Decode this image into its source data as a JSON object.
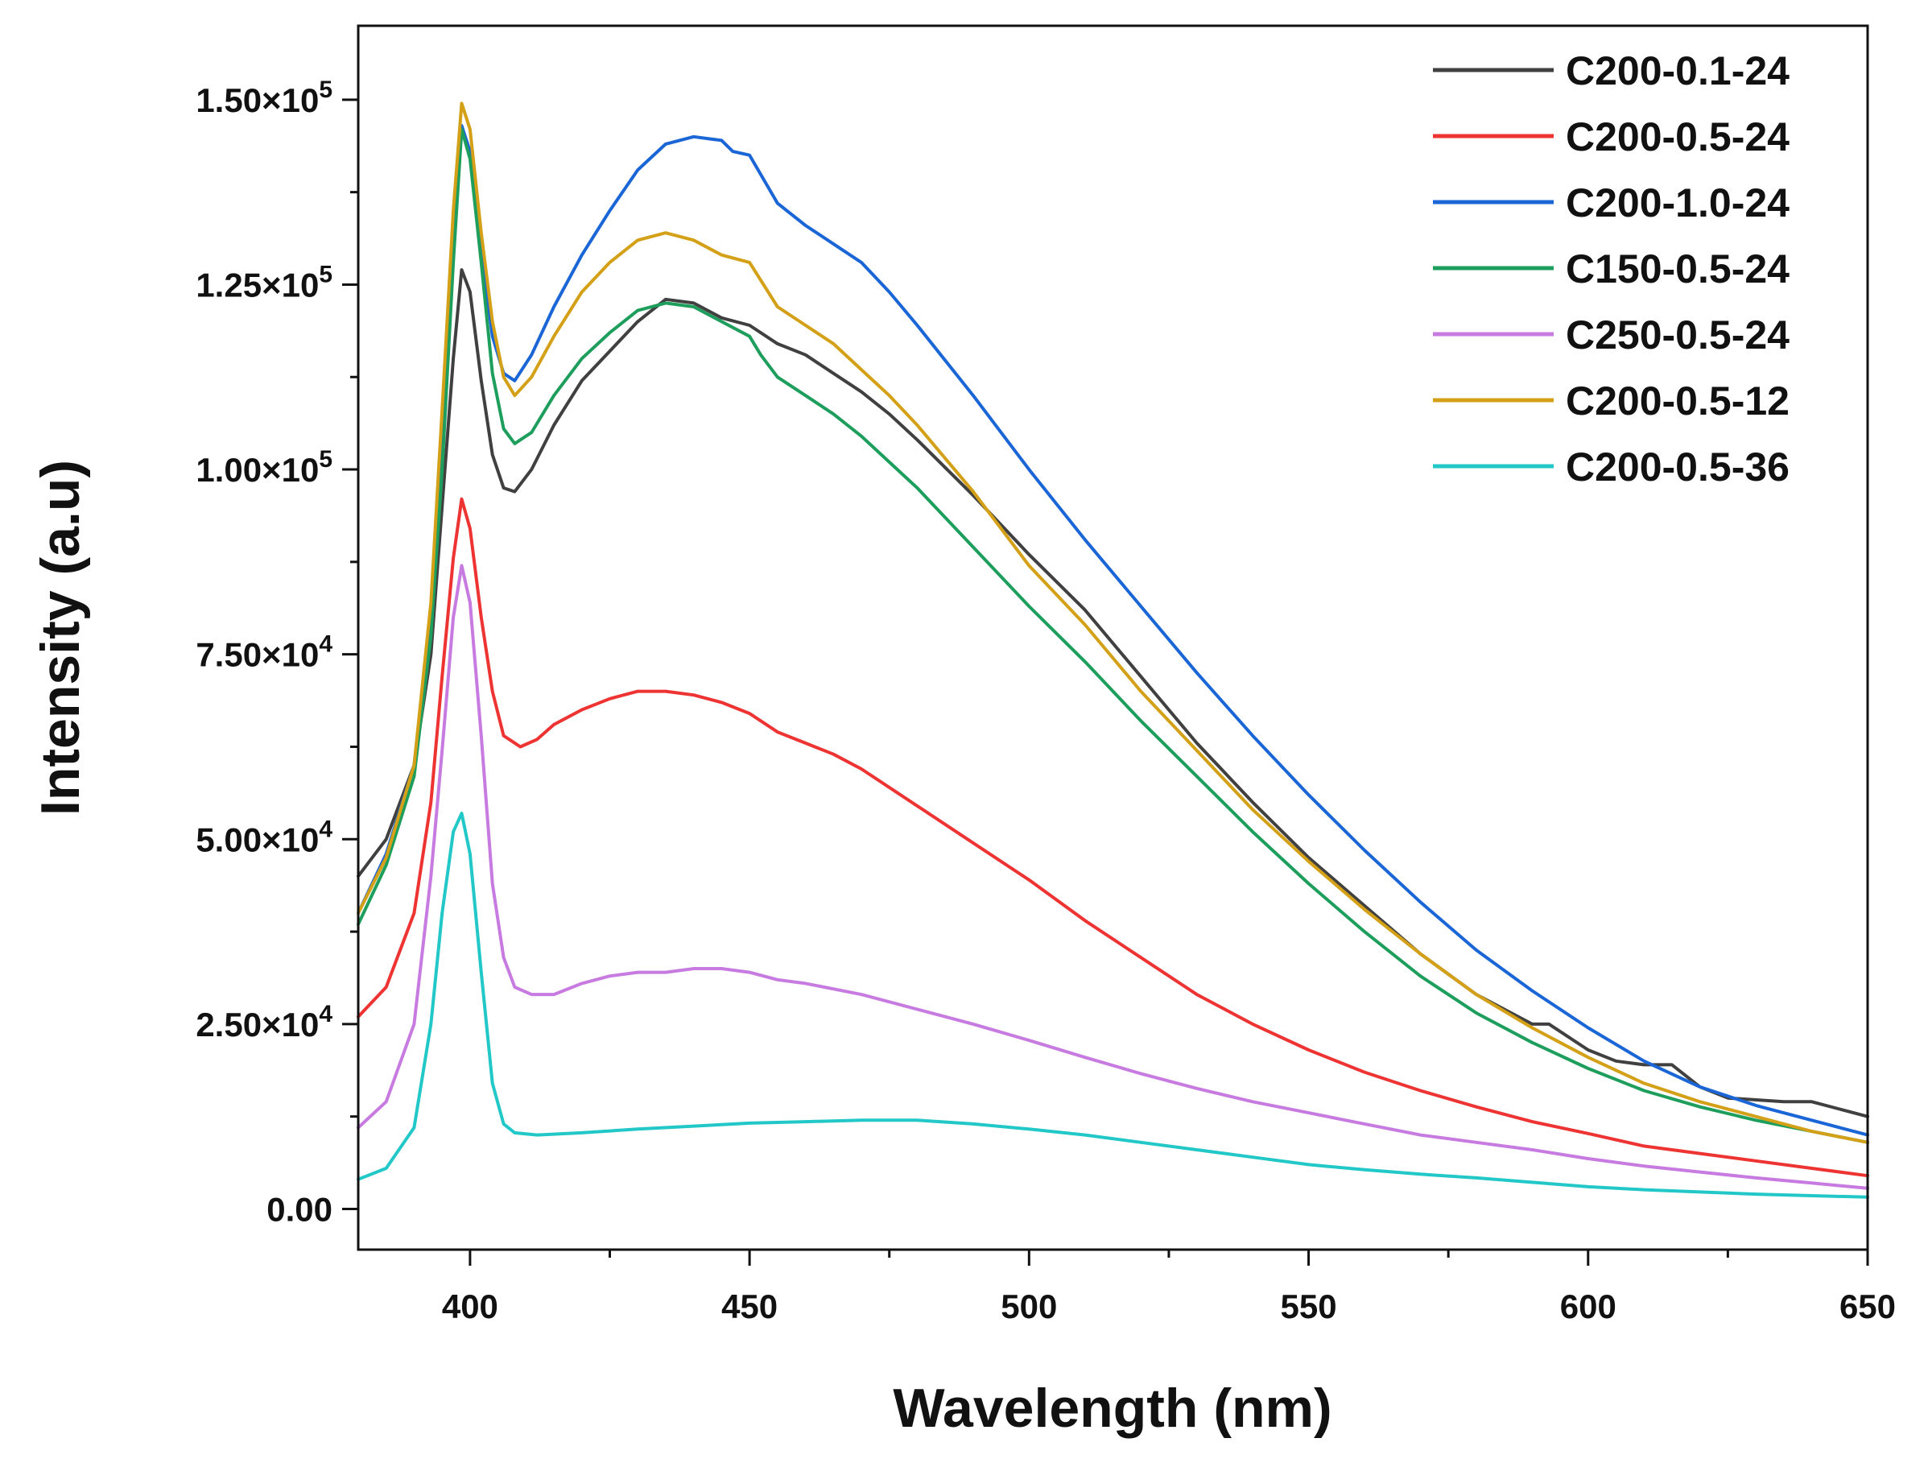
{
  "chart_data": {
    "type": "line",
    "title": "",
    "xlabel": "Wavelength (nm)",
    "ylabel": "Intensity (a.u)",
    "xlim": [
      380,
      650
    ],
    "ylim": [
      -5500,
      160000
    ],
    "x_ticks": [
      400,
      450,
      500,
      550,
      600,
      650
    ],
    "x_tick_labels": [
      "400",
      "450",
      "500",
      "550",
      "600",
      "650"
    ],
    "y_ticks": [
      0,
      25000,
      50000,
      75000,
      100000,
      125000,
      150000
    ],
    "y_tick_mantissas": [
      "0.00",
      "2.50×10",
      "5.00×10",
      "7.50×10",
      "1.00×10",
      "1.25×10",
      "1.50×10"
    ],
    "y_tick_exponents": [
      "",
      "4",
      "4",
      "4",
      "5",
      "5",
      "5"
    ],
    "legend_position": "top-right",
    "grid": false,
    "series": [
      {
        "name": "C200-0.1-24",
        "color": "#404040",
        "points": [
          [
            380,
            45000
          ],
          [
            385,
            50000
          ],
          [
            390,
            60000
          ],
          [
            393,
            75000
          ],
          [
            395,
            95000
          ],
          [
            397,
            115000
          ],
          [
            398.5,
            127000
          ],
          [
            400,
            124000
          ],
          [
            402,
            112000
          ],
          [
            404,
            102000
          ],
          [
            406,
            97500
          ],
          [
            408,
            97000
          ],
          [
            411,
            100000
          ],
          [
            415,
            106000
          ],
          [
            420,
            112000
          ],
          [
            425,
            116000
          ],
          [
            430,
            120000
          ],
          [
            435,
            123000
          ],
          [
            440,
            122500
          ],
          [
            445,
            120500
          ],
          [
            450,
            119500
          ],
          [
            455,
            117000
          ],
          [
            460,
            115500
          ],
          [
            465,
            113000
          ],
          [
            470,
            110500
          ],
          [
            475,
            107500
          ],
          [
            480,
            104000
          ],
          [
            490,
            96500
          ],
          [
            500,
            88500
          ],
          [
            510,
            81000
          ],
          [
            520,
            72000
          ],
          [
            530,
            63000
          ],
          [
            540,
            55000
          ],
          [
            550,
            47500
          ],
          [
            560,
            41000
          ],
          [
            570,
            34500
          ],
          [
            580,
            29000
          ],
          [
            590,
            25000
          ],
          [
            593,
            25000
          ],
          [
            600,
            21500
          ],
          [
            605,
            20000
          ],
          [
            610,
            19500
          ],
          [
            615,
            19500
          ],
          [
            620,
            16500
          ],
          [
            625,
            15000
          ],
          [
            635,
            14500
          ],
          [
            640,
            14500
          ],
          [
            645,
            13500
          ],
          [
            650,
            12500
          ]
        ]
      },
      {
        "name": "C200-0.5-24",
        "color": "#ee3333",
        "points": [
          [
            380,
            26000
          ],
          [
            385,
            30000
          ],
          [
            390,
            40000
          ],
          [
            393,
            55000
          ],
          [
            395,
            72000
          ],
          [
            397,
            88000
          ],
          [
            398.5,
            96000
          ],
          [
            400,
            92000
          ],
          [
            402,
            80000
          ],
          [
            404,
            70000
          ],
          [
            406,
            64000
          ],
          [
            409,
            62500
          ],
          [
            412,
            63500
          ],
          [
            415,
            65500
          ],
          [
            420,
            67500
          ],
          [
            425,
            69000
          ],
          [
            430,
            70000
          ],
          [
            435,
            70000
          ],
          [
            440,
            69500
          ],
          [
            445,
            68500
          ],
          [
            450,
            67000
          ],
          [
            455,
            64500
          ],
          [
            460,
            63000
          ],
          [
            465,
            61500
          ],
          [
            470,
            59500
          ],
          [
            480,
            54500
          ],
          [
            490,
            49500
          ],
          [
            500,
            44500
          ],
          [
            510,
            39000
          ],
          [
            520,
            34000
          ],
          [
            530,
            29000
          ],
          [
            540,
            25000
          ],
          [
            550,
            21500
          ],
          [
            560,
            18500
          ],
          [
            570,
            16000
          ],
          [
            580,
            13800
          ],
          [
            590,
            11800
          ],
          [
            600,
            10200
          ],
          [
            610,
            8500
          ],
          [
            620,
            7500
          ],
          [
            630,
            6500
          ],
          [
            640,
            5500
          ],
          [
            650,
            4500
          ]
        ]
      },
      {
        "name": "C200-1.0-24",
        "color": "#1a66d6",
        "points": [
          [
            380,
            40000
          ],
          [
            385,
            48000
          ],
          [
            390,
            60000
          ],
          [
            393,
            80000
          ],
          [
            395,
            105000
          ],
          [
            397,
            132000
          ],
          [
            398.5,
            146500
          ],
          [
            400,
            143000
          ],
          [
            402,
            130000
          ],
          [
            404,
            118000
          ],
          [
            406,
            113000
          ],
          [
            408,
            112000
          ],
          [
            411,
            115500
          ],
          [
            415,
            122000
          ],
          [
            420,
            129000
          ],
          [
            425,
            135000
          ],
          [
            430,
            140500
          ],
          [
            435,
            144000
          ],
          [
            440,
            145000
          ],
          [
            445,
            144500
          ],
          [
            447,
            143000
          ],
          [
            450,
            142500
          ],
          [
            455,
            136000
          ],
          [
            460,
            133000
          ],
          [
            465,
            130500
          ],
          [
            470,
            128000
          ],
          [
            475,
            124000
          ],
          [
            480,
            119500
          ],
          [
            490,
            110000
          ],
          [
            500,
            100000
          ],
          [
            510,
            90500
          ],
          [
            520,
            81500
          ],
          [
            530,
            72500
          ],
          [
            540,
            64000
          ],
          [
            550,
            56000
          ],
          [
            560,
            48500
          ],
          [
            570,
            41500
          ],
          [
            580,
            35000
          ],
          [
            590,
            29500
          ],
          [
            600,
            24500
          ],
          [
            610,
            20000
          ],
          [
            620,
            16500
          ],
          [
            630,
            14000
          ],
          [
            640,
            12000
          ],
          [
            650,
            10000
          ]
        ]
      },
      {
        "name": "C150-0.5-24",
        "color": "#1e9e5c",
        "points": [
          [
            380,
            38500
          ],
          [
            385,
            46500
          ],
          [
            390,
            58500
          ],
          [
            393,
            77500
          ],
          [
            395,
            100000
          ],
          [
            397,
            128000
          ],
          [
            398.5,
            146000
          ],
          [
            400,
            142000
          ],
          [
            402,
            128000
          ],
          [
            404,
            113000
          ],
          [
            406,
            105500
          ],
          [
            408,
            103500
          ],
          [
            411,
            105000
          ],
          [
            415,
            110000
          ],
          [
            420,
            115000
          ],
          [
            425,
            118500
          ],
          [
            430,
            121500
          ],
          [
            435,
            122500
          ],
          [
            440,
            122000
          ],
          [
            445,
            120000
          ],
          [
            450,
            118000
          ],
          [
            452,
            115500
          ],
          [
            455,
            112500
          ],
          [
            460,
            110000
          ],
          [
            465,
            107500
          ],
          [
            470,
            104500
          ],
          [
            475,
            101000
          ],
          [
            480,
            97500
          ],
          [
            490,
            89500
          ],
          [
            500,
            81500
          ],
          [
            510,
            74000
          ],
          [
            520,
            66000
          ],
          [
            530,
            58500
          ],
          [
            540,
            51000
          ],
          [
            550,
            44000
          ],
          [
            560,
            37500
          ],
          [
            570,
            31500
          ],
          [
            580,
            26500
          ],
          [
            590,
            22500
          ],
          [
            600,
            19000
          ],
          [
            610,
            16000
          ],
          [
            620,
            13800
          ],
          [
            630,
            12000
          ],
          [
            640,
            10500
          ],
          [
            650,
            9000
          ]
        ]
      },
      {
        "name": "C250-0.5-24",
        "color": "#c77ae0",
        "points": [
          [
            380,
            11000
          ],
          [
            385,
            14500
          ],
          [
            390,
            25000
          ],
          [
            393,
            45000
          ],
          [
            395,
            62000
          ],
          [
            397,
            80000
          ],
          [
            398.5,
            87000
          ],
          [
            400,
            82000
          ],
          [
            402,
            64000
          ],
          [
            404,
            44000
          ],
          [
            406,
            34000
          ],
          [
            408,
            30000
          ],
          [
            411,
            29000
          ],
          [
            415,
            29000
          ],
          [
            420,
            30500
          ],
          [
            425,
            31500
          ],
          [
            430,
            32000
          ],
          [
            435,
            32000
          ],
          [
            440,
            32500
          ],
          [
            445,
            32500
          ],
          [
            450,
            32000
          ],
          [
            455,
            31000
          ],
          [
            460,
            30500
          ],
          [
            470,
            29000
          ],
          [
            480,
            27000
          ],
          [
            490,
            25000
          ],
          [
            500,
            22800
          ],
          [
            510,
            20500
          ],
          [
            520,
            18300
          ],
          [
            530,
            16300
          ],
          [
            540,
            14500
          ],
          [
            550,
            13000
          ],
          [
            560,
            11500
          ],
          [
            570,
            10000
          ],
          [
            580,
            9000
          ],
          [
            590,
            8000
          ],
          [
            600,
            6800
          ],
          [
            610,
            5800
          ],
          [
            620,
            5000
          ],
          [
            630,
            4200
          ],
          [
            640,
            3500
          ],
          [
            650,
            2800
          ]
        ]
      },
      {
        "name": "C200-0.5-12",
        "color": "#d4a017",
        "points": [
          [
            380,
            40000
          ],
          [
            385,
            47500
          ],
          [
            390,
            60000
          ],
          [
            393,
            82000
          ],
          [
            395,
            108000
          ],
          [
            397,
            135000
          ],
          [
            398.5,
            149500
          ],
          [
            400,
            146000
          ],
          [
            402,
            132000
          ],
          [
            404,
            120000
          ],
          [
            406,
            112500
          ],
          [
            408,
            110000
          ],
          [
            411,
            112500
          ],
          [
            415,
            118000
          ],
          [
            420,
            124000
          ],
          [
            425,
            128000
          ],
          [
            430,
            131000
          ],
          [
            435,
            132000
          ],
          [
            440,
            131000
          ],
          [
            445,
            129000
          ],
          [
            450,
            128000
          ],
          [
            455,
            122000
          ],
          [
            460,
            119500
          ],
          [
            465,
            117000
          ],
          [
            470,
            113500
          ],
          [
            475,
            110000
          ],
          [
            480,
            106000
          ],
          [
            490,
            97000
          ],
          [
            500,
            87000
          ],
          [
            510,
            79000
          ],
          [
            520,
            70000
          ],
          [
            530,
            62000
          ],
          [
            540,
            54000
          ],
          [
            550,
            47000
          ],
          [
            560,
            40500
          ],
          [
            570,
            34500
          ],
          [
            580,
            29000
          ],
          [
            590,
            24500
          ],
          [
            600,
            20500
          ],
          [
            610,
            17000
          ],
          [
            620,
            14500
          ],
          [
            630,
            12500
          ],
          [
            640,
            10500
          ],
          [
            650,
            9000
          ]
        ]
      },
      {
        "name": "C200-0.5-36",
        "color": "#22c7c7",
        "points": [
          [
            380,
            4000
          ],
          [
            385,
            5500
          ],
          [
            390,
            11000
          ],
          [
            393,
            25000
          ],
          [
            395,
            40000
          ],
          [
            397,
            51000
          ],
          [
            398.5,
            53500
          ],
          [
            400,
            48000
          ],
          [
            402,
            32000
          ],
          [
            404,
            17000
          ],
          [
            406,
            11500
          ],
          [
            408,
            10300
          ],
          [
            412,
            10000
          ],
          [
            420,
            10300
          ],
          [
            430,
            10800
          ],
          [
            440,
            11200
          ],
          [
            450,
            11600
          ],
          [
            460,
            11800
          ],
          [
            470,
            12000
          ],
          [
            480,
            12000
          ],
          [
            490,
            11500
          ],
          [
            500,
            10800
          ],
          [
            510,
            10000
          ],
          [
            520,
            9000
          ],
          [
            530,
            8000
          ],
          [
            540,
            7000
          ],
          [
            550,
            6000
          ],
          [
            560,
            5300
          ],
          [
            570,
            4700
          ],
          [
            580,
            4200
          ],
          [
            590,
            3600
          ],
          [
            600,
            3000
          ],
          [
            610,
            2600
          ],
          [
            620,
            2300
          ],
          [
            630,
            2000
          ],
          [
            640,
            1800
          ],
          [
            650,
            1600
          ]
        ]
      }
    ]
  }
}
